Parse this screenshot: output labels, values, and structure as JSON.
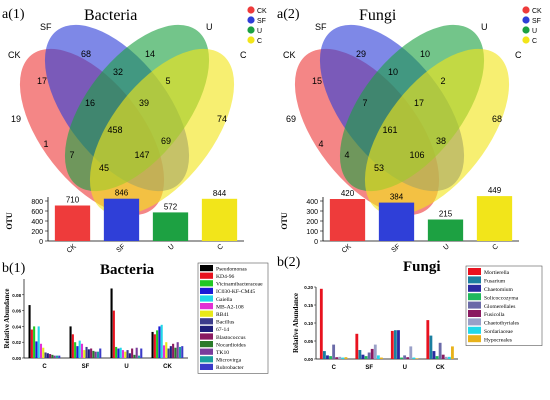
{
  "panels": {
    "a1": {
      "label": "a(1)",
      "title": "Bacteria",
      "venn": {
        "set_labels": [
          "CK",
          "SF",
          "U",
          "C"
        ],
        "legend": [
          "CK",
          "SF",
          "U",
          "C"
        ],
        "colors": [
          "#ee3b3b",
          "#2f3fd8",
          "#1da142",
          "#f2e51a"
        ],
        "counts": [
          "68",
          "14",
          "17",
          "32",
          "5",
          "19",
          "16",
          "39",
          "74",
          "458",
          "1",
          "69",
          "7",
          "147",
          "45"
        ]
      }
    },
    "a2": {
      "label": "a(2)",
      "title": "Fungi",
      "venn": {
        "set_labels": [
          "CK",
          "SF",
          "U",
          "C"
        ],
        "legend": [
          "CK",
          "SF",
          "U",
          "C"
        ],
        "colors": [
          "#ee3b3b",
          "#2f3fd8",
          "#1da142",
          "#f2e51a"
        ],
        "counts": [
          "29",
          "10",
          "15",
          "10",
          "2",
          "69",
          "7",
          "17",
          "68",
          "161",
          "4",
          "38",
          "4",
          "106",
          "53"
        ]
      }
    },
    "b1": {
      "label": "b(1)",
      "title": "Bacteria"
    },
    "b2": {
      "label": "b(2)",
      "title": "Fungi"
    }
  },
  "chart_data": [
    {
      "type": "bar",
      "panel": "a(1)",
      "categories": [
        "CK",
        "SF",
        "U",
        "C"
      ],
      "values": [
        710,
        846,
        572,
        844
      ],
      "ylabel": "OTU",
      "ylim": [
        0,
        800
      ],
      "yticks": [
        "0",
        "200",
        "400",
        "600",
        "800"
      ],
      "colors": [
        "#ee3b3b",
        "#2f3fd8",
        "#1da142",
        "#f2e51a"
      ]
    },
    {
      "type": "bar",
      "panel": "a(2)",
      "categories": [
        "CK",
        "SF",
        "U",
        "C"
      ],
      "values": [
        420,
        384,
        215,
        449
      ],
      "ylabel": "OTU",
      "ylim": [
        0,
        400
      ],
      "yticks": [
        "0",
        "100",
        "200",
        "300",
        "400"
      ],
      "colors": [
        "#ee3b3b",
        "#2f3fd8",
        "#1da142",
        "#f2e51a"
      ]
    },
    {
      "type": "bar",
      "panel": "b(1)",
      "title": "Bacteria",
      "ylabel": "Relative Abundance",
      "categories": [
        "C",
        "SF",
        "U",
        "CK"
      ],
      "ylim": [
        0,
        0.1
      ],
      "yticks": [
        "0.00",
        "0.02",
        "0.04",
        "0.06",
        "0.08"
      ],
      "legend_placement": "right",
      "series": [
        {
          "name": "Pseudomonas",
          "color": "#000000",
          "values": [
            0.067,
            0.04,
            0.088,
            0.033
          ]
        },
        {
          "name": "KD4-96",
          "color": "#e8121f",
          "values": [
            0.036,
            0.03,
            0.06,
            0.03
          ]
        },
        {
          "name": "Vicinamibacteraceae",
          "color": "#21c823",
          "values": [
            0.04,
            0.02,
            0.014,
            0.035
          ]
        },
        {
          "name": "IC030-KF-CM45",
          "color": "#1b1bd6",
          "values": [
            0.021,
            0.015,
            0.012,
            0.04
          ]
        },
        {
          "name": "Gaiella",
          "color": "#22d8e8",
          "values": [
            0.04,
            0.022,
            0.013,
            0.042
          ]
        },
        {
          "name": "MB-A2-108",
          "color": "#e331d4",
          "values": [
            0.018,
            0.018,
            0.01,
            0.016
          ]
        },
        {
          "name": "RB41",
          "color": "#e8e81a",
          "values": [
            0.013,
            0.01,
            0.008,
            0.02
          ]
        },
        {
          "name": "Bacillus",
          "color": "#3c3c8c",
          "values": [
            0.007,
            0.014,
            0.01,
            0.012
          ]
        },
        {
          "name": "67-14",
          "color": "#1f1f7a",
          "values": [
            0.006,
            0.011,
            0.006,
            0.015
          ]
        },
        {
          "name": "Blastococcus",
          "color": "#8a1a60",
          "values": [
            0.005,
            0.012,
            0.012,
            0.018
          ]
        },
        {
          "name": "Nocardioides",
          "color": "#2a7a2a",
          "values": [
            0.004,
            0.009,
            0.004,
            0.013
          ]
        },
        {
          "name": "TK10",
          "color": "#7a3c9c",
          "values": [
            0.003,
            0.008,
            0.013,
            0.02
          ]
        },
        {
          "name": "Microvirga",
          "color": "#1aa0a0",
          "values": [
            0.003,
            0.008,
            0.003,
            0.014
          ]
        },
        {
          "name": "Rubrobacter",
          "color": "#3a3ac8",
          "values": [
            0.003,
            0.012,
            0.012,
            0.015
          ]
        }
      ]
    },
    {
      "type": "bar",
      "panel": "b(2)",
      "title": "Fungi",
      "ylabel": "Relative Abundance",
      "categories": [
        "C",
        "SF",
        "U",
        "CK"
      ],
      "ylim": [
        0,
        0.2
      ],
      "yticks": [
        "0.00",
        "0.05",
        "0.10",
        "0.15",
        "0.20"
      ],
      "legend_placement": "right",
      "series": [
        {
          "name": "Mortierella",
          "color": "#e8121f",
          "values": [
            0.195,
            0.07,
            0.078,
            0.108
          ]
        },
        {
          "name": "Fusarium",
          "color": "#1b7fa0",
          "values": [
            0.022,
            0.025,
            0.08,
            0.065
          ]
        },
        {
          "name": "Chaetomium",
          "color": "#2a2aa0",
          "values": [
            0.01,
            0.012,
            0.08,
            0.022
          ]
        },
        {
          "name": "Solicoccozyma",
          "color": "#1fb85c",
          "values": [
            0.008,
            0.008,
            0.004,
            0.008
          ]
        },
        {
          "name": "Glomerellales",
          "color": "#6a6aa8",
          "values": [
            0.04,
            0.018,
            0.01,
            0.045
          ]
        },
        {
          "name": "Fusicolla",
          "color": "#8a1a60",
          "values": [
            0.005,
            0.028,
            0.005,
            0.012
          ]
        },
        {
          "name": "Chaetothyriales",
          "color": "#9aa0c8",
          "values": [
            0.006,
            0.04,
            0.035,
            0.006
          ]
        },
        {
          "name": "Sordariaceae",
          "color": "#22d8e8",
          "values": [
            0.004,
            0.01,
            0.004,
            0.006
          ]
        },
        {
          "name": "Hypocreales",
          "color": "#e8b21a",
          "values": [
            0.005,
            0.004,
            0.002,
            0.035
          ]
        }
      ]
    }
  ]
}
